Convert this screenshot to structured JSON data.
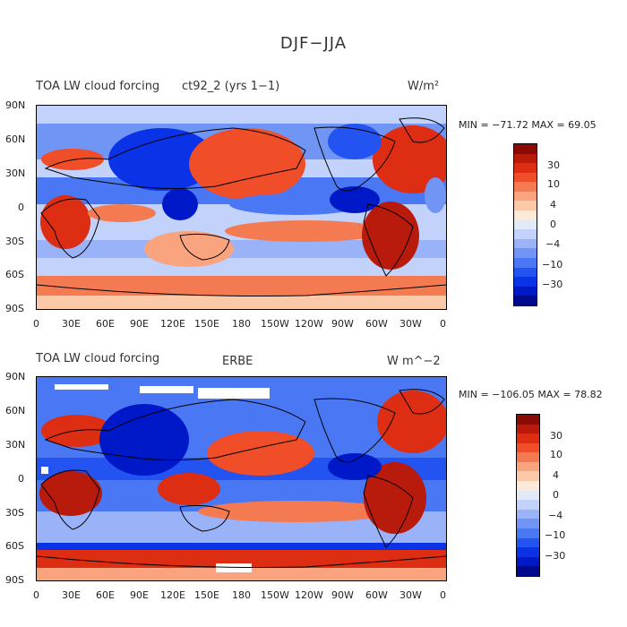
{
  "figure": {
    "title": "DJF−JJA"
  },
  "panels": [
    {
      "left_title": "TOA LW cloud forcing",
      "center_title": "ct92_2 (yrs 1−1)",
      "units": "W/m²",
      "stats": "MIN = −71.72  MAX =   69.05"
    },
    {
      "left_title": "TOA LW cloud forcing",
      "center_title": "ERBE",
      "units": "W m^−2",
      "stats": "MIN = −106.05  MAX =   78.82"
    }
  ],
  "lat_labels": [
    "90N",
    "60N",
    "30N",
    "0",
    "30S",
    "60S",
    "90S"
  ],
  "lon_labels": [
    "0",
    "30E",
    "60E",
    "90E",
    "120E",
    "150E",
    "180",
    "150W",
    "120W",
    "90W",
    "60W",
    "30W",
    "0"
  ],
  "colorbar": {
    "colors": [
      "#000a8c",
      "#0019c8",
      "#0a32e6",
      "#2353f0",
      "#4a78f5",
      "#7095f5",
      "#9ab2f8",
      "#c2d2fa",
      "#e2eaf8",
      "#fde9d8",
      "#fcc9a8",
      "#f9a47e",
      "#f47a52",
      "#f04e28",
      "#dd2d12",
      "#b81a0c",
      "#8a0a06"
    ],
    "labels": [
      "30",
      "10",
      "4",
      "0",
      "−4",
      "−10",
      "−30"
    ]
  }
}
